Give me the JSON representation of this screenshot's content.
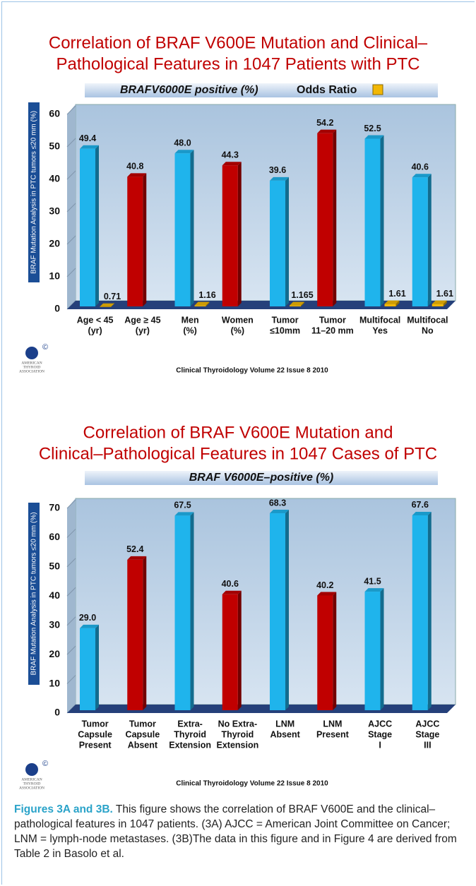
{
  "chart_data": [
    {
      "type": "bar",
      "title": [
        "Correlation of BRAF V600E Mutation and Clinical–",
        "Pathological Features in 1047 Patients with PTC"
      ],
      "ylabel": "BRAF Mutation Analysis in PTC tumors ≤20 mm (%)",
      "categories": [
        [
          "Age < 45",
          "(yr)"
        ],
        [
          "Age ≥ 45",
          "(yr)"
        ],
        [
          "Men",
          "(%)"
        ],
        [
          "Women",
          "(%)"
        ],
        [
          "Tumor",
          "≤10mm"
        ],
        [
          "Tumor",
          "11–20 mm"
        ],
        [
          "Multifocal",
          "Yes"
        ],
        [
          "Multifocal",
          "No"
        ]
      ],
      "series": [
        {
          "name": "BRAFV6000E positive (%)",
          "colors": [
            "#1fb4ec",
            "#c00000",
            "#1fb4ec",
            "#c00000",
            "#1fb4ec",
            "#c00000",
            "#1fb4ec",
            "#1fb4ec"
          ],
          "values": [
            49.4,
            40.8,
            48.0,
            44.3,
            39.6,
            54.2,
            52.5,
            40.6
          ],
          "value_labels": [
            "49.4",
            "40.8",
            "48.0",
            "44.3",
            "39.6",
            "54.2",
            "52.5",
            "40.6"
          ]
        },
        {
          "name": "Odds Ratio",
          "color": "#f2b705",
          "values": [
            0.71,
            null,
            1.16,
            null,
            1.165,
            null,
            1.61,
            1.61
          ]
        }
      ],
      "ylim": [
        0,
        60
      ],
      "yticks": [
        0,
        10,
        20,
        30,
        40,
        50,
        60
      ],
      "logo_text": [
        "AMERICAN",
        "THYROID",
        "ASSOCIATION"
      ],
      "source": "Clinical Thyroidology Volume 22 Issue 8 2010"
    },
    {
      "type": "bar",
      "title": [
        "Correlation of BRAF V600E Mutation and",
        "Clinical–Pathological Features in 1047 Cases of PTC"
      ],
      "ylabel": "BRAF Mutation Analysis in PTC tumors ≤20 mm (%)",
      "categories": [
        [
          "Tumor",
          "Capsule",
          "Present"
        ],
        [
          "Tumor",
          "Capsule",
          "Absent"
        ],
        [
          "Extra-",
          "Thyroid",
          "Extension"
        ],
        [
          "No Extra-",
          "Thyroid",
          "Extension"
        ],
        [
          "LNM",
          "Absent"
        ],
        [
          "LNM",
          "Present"
        ],
        [
          "AJCC",
          "Stage",
          "I"
        ],
        [
          "AJCC",
          "Stage",
          "III"
        ]
      ],
      "series": [
        {
          "name": "BRAF V6000E–positive (%)",
          "colors": [
            "#1fb4ec",
            "#c00000",
            "#1fb4ec",
            "#c00000",
            "#1fb4ec",
            "#c00000",
            "#1fb4ec",
            "#1fb4ec"
          ],
          "values": [
            29.0,
            52.4,
            67.5,
            40.6,
            68.3,
            40.2,
            41.5,
            67.6
          ],
          "value_labels": [
            "29.0",
            "52.4",
            "67.5",
            "40.6",
            "68.3",
            "40.2",
            "41.5",
            "67.6"
          ]
        }
      ],
      "ylim": [
        0,
        70
      ],
      "yticks": [
        0,
        10,
        20,
        30,
        40,
        50,
        60,
        70
      ],
      "logo_text": [
        "AMERICAN",
        "THYROID",
        "ASSOCIATION"
      ],
      "source": "Clinical Thyroidology Volume 22 Issue 8 2010"
    }
  ],
  "caption": {
    "label": "Figures 3A and 3B.",
    "text": "This figure shows the correlation of BRAF V600E and the clinical–pathological features in 1047 patients. (3A) AJCC = American Joint Committee on Cancer; LNM = lymph-node metastases. (3B)The data in this figure and in Figure 4 are derived from Table 2 in Basolo et al."
  }
}
